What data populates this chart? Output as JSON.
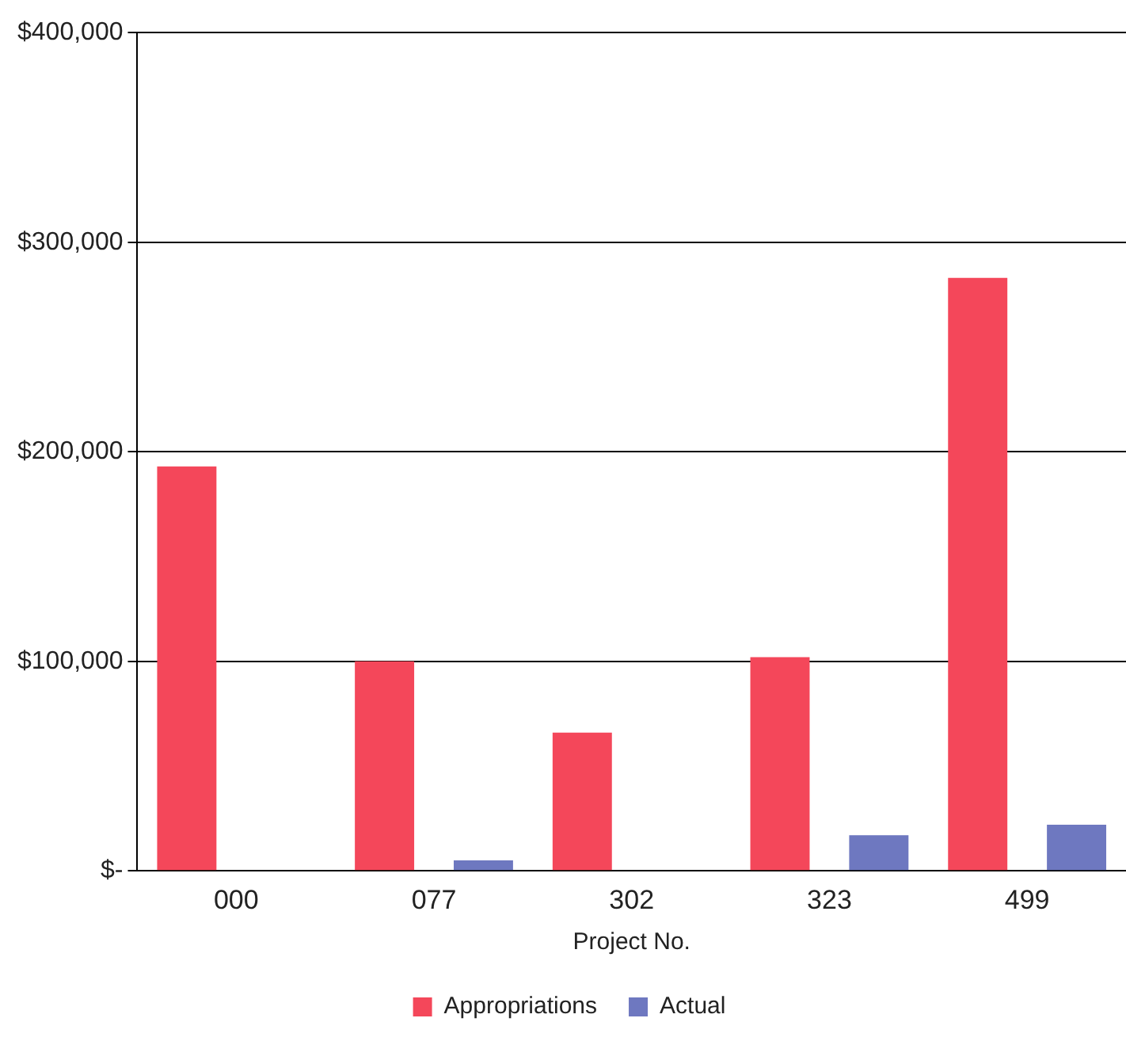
{
  "chart_data": {
    "type": "bar",
    "xlabel": "Project No.",
    "categories": [
      "000",
      "077",
      "302",
      "323",
      "499"
    ],
    "series": [
      {
        "name": "Appropriations",
        "color": "#f4475a",
        "values": [
          193000,
          100000,
          66000,
          102000,
          283000
        ]
      },
      {
        "name": "Actual",
        "color": "#6e78c0",
        "values": [
          null,
          5000,
          0,
          17000,
          22000
        ]
      }
    ],
    "ylim": [
      0,
      400000
    ],
    "yticks": [
      {
        "value": 0,
        "label": "$-"
      },
      {
        "value": 100000,
        "label": "$100,000"
      },
      {
        "value": 200000,
        "label": "$200,000"
      },
      {
        "value": 300000,
        "label": "$300,000"
      },
      {
        "value": 400000,
        "label": "$400,000"
      }
    ],
    "grid": "y",
    "legend": "bottom"
  }
}
